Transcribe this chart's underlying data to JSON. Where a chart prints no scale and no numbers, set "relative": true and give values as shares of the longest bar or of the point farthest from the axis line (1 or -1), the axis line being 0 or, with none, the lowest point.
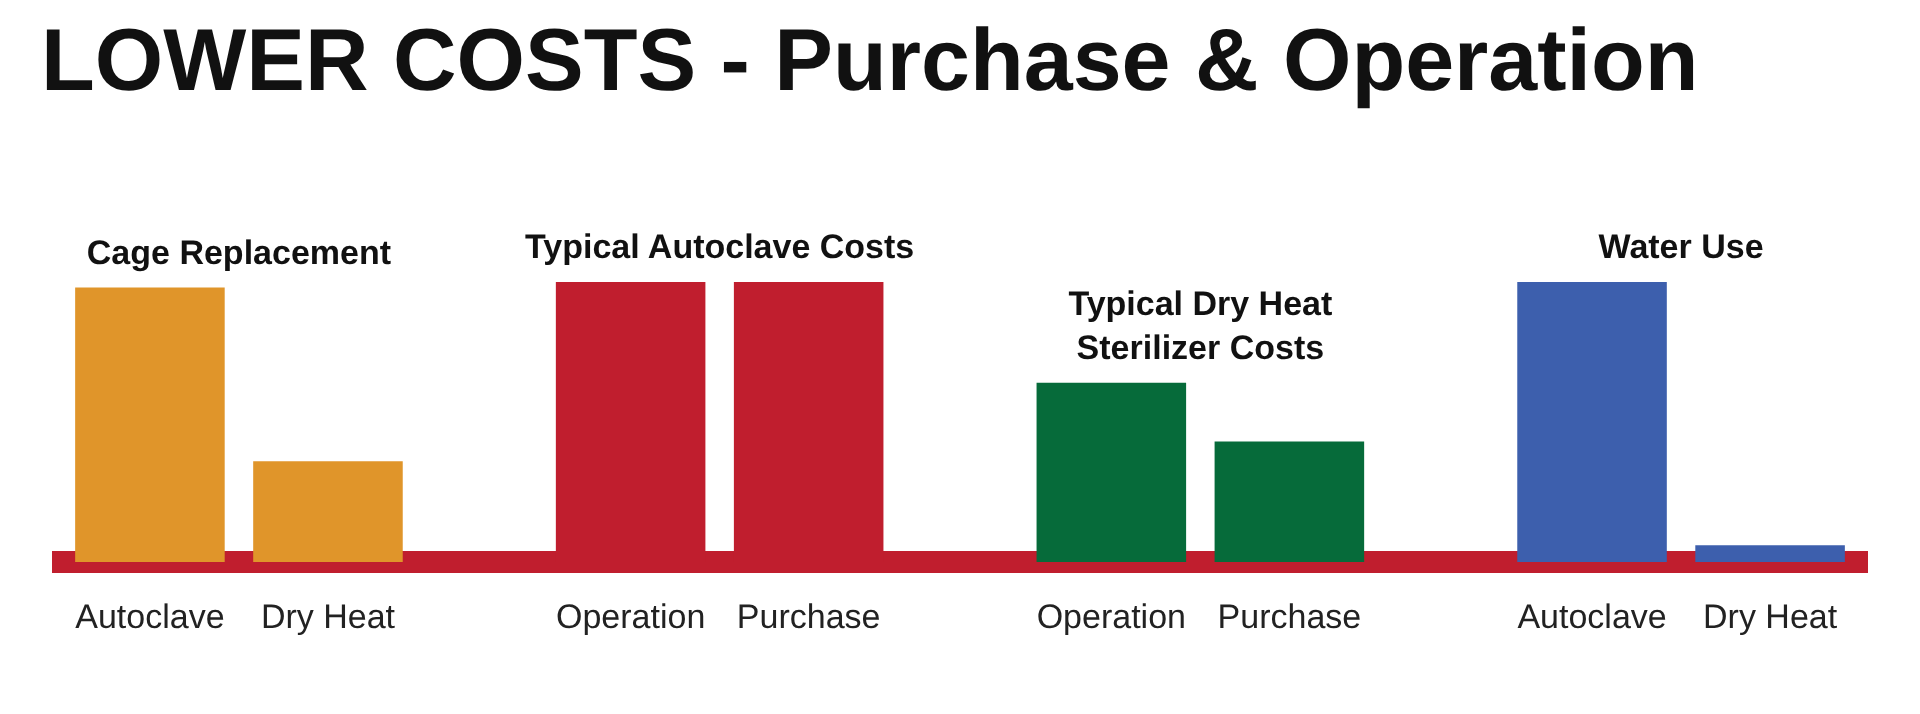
{
  "chart_data": {
    "type": "bar",
    "title": "LOWER COSTS - Purchase & Operation",
    "relative": true,
    "categories": [
      "Autoclave",
      "Dry Heat",
      "Operation",
      "Purchase",
      "Operation",
      "Purchase",
      "Autoclave",
      "Dry Heat"
    ],
    "values": [
      0.98,
      0.36,
      1,
      1,
      0.64,
      0.43,
      1,
      0.06
    ],
    "colors": [
      "#e0952a",
      "#e0952a",
      "#c01e2e",
      "#c01e2e",
      "#066b3a",
      "#066b3a",
      "#3d5fad",
      "#3d5fad"
    ],
    "annotations": [
      "Cage Replacement",
      "Typical Autoclave Costs",
      "Typical Dry Heat Sterilizer Costs",
      "Water Use"
    ],
    "legend": false
  }
}
